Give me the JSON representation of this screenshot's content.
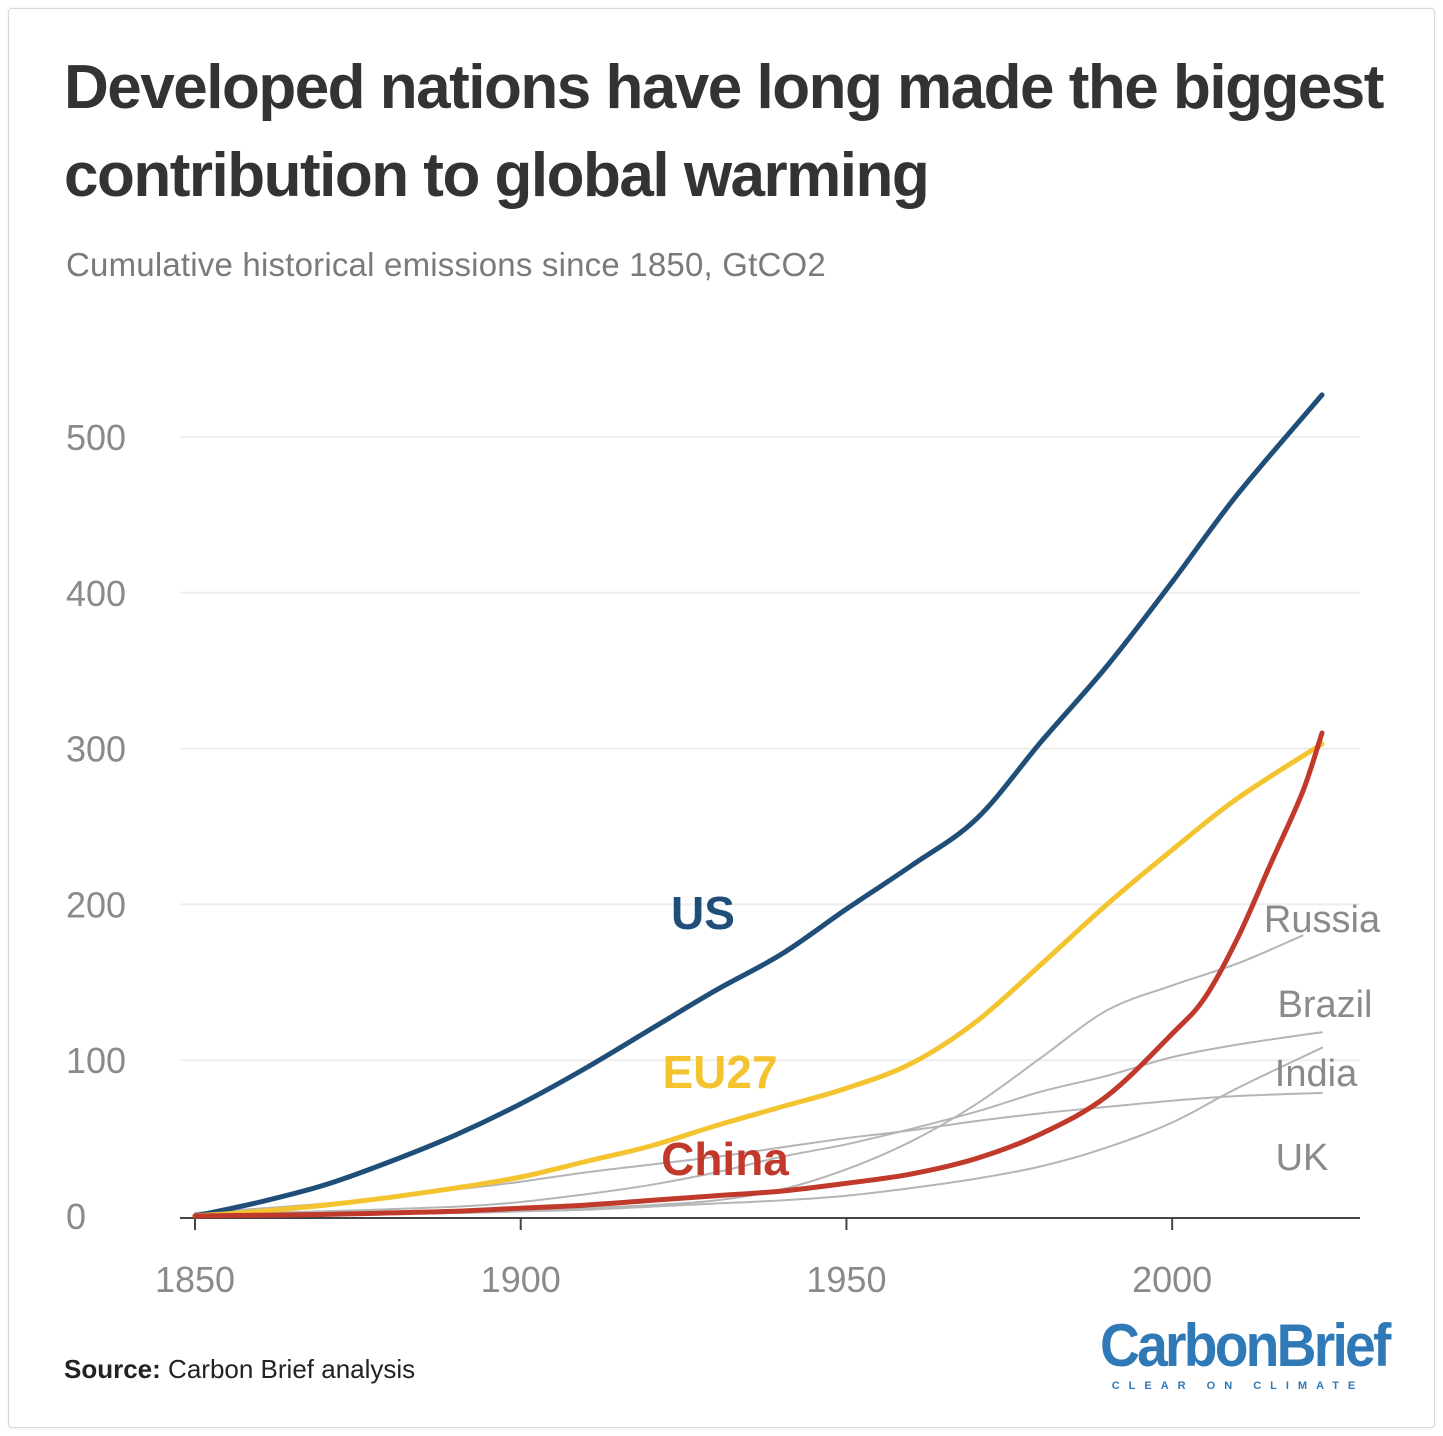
{
  "header": {
    "title": "Developed nations have long made the biggest contribution to global warming",
    "subtitle": "Cumulative historical emissions since 1850, GtCO2"
  },
  "footer": {
    "source_label": "Source:",
    "source_text": "Carbon Brief analysis",
    "logo_text": "CarbonBrief",
    "logo_tagline": "CLEAR ON CLIMATE"
  },
  "colors": {
    "us": "#1f4e79",
    "eu27": "#f4c430",
    "china": "#c0392b",
    "others": "#b5b5b5",
    "grid": "#eeeeee",
    "axis_text": "#8a8a8a"
  },
  "chart_data": {
    "type": "line",
    "title": "Developed nations have long made the biggest contribution to global warming",
    "subtitle": "Cumulative historical emissions since 1850, GtCO2",
    "xlabel": "",
    "ylabel": "",
    "xlim": [
      1850,
      2023
    ],
    "ylim": [
      0,
      530
    ],
    "x_ticks": [
      "1850",
      "1900",
      "1950",
      "2000"
    ],
    "y_ticks": [
      "0",
      "100",
      "200",
      "300",
      "400",
      "500"
    ],
    "grid": "horizontal",
    "series": [
      {
        "name": "US",
        "highlight": true,
        "color": "#1f4e79",
        "x": [
          1850,
          1860,
          1870,
          1880,
          1890,
          1900,
          1910,
          1920,
          1930,
          1940,
          1950,
          1960,
          1970,
          1980,
          1990,
          2000,
          2010,
          2023
        ],
        "y": [
          0,
          9,
          20,
          35,
          52,
          72,
          95,
          120,
          145,
          168,
          197,
          225,
          255,
          305,
          353,
          407,
          463,
          527
        ]
      },
      {
        "name": "EU27",
        "highlight": true,
        "color": "#f4c430",
        "x": [
          1850,
          1860,
          1870,
          1880,
          1890,
          1900,
          1910,
          1920,
          1930,
          1940,
          1950,
          1960,
          1970,
          1980,
          1990,
          2000,
          2010,
          2023
        ],
        "y": [
          0,
          3,
          7,
          12,
          18,
          25,
          35,
          45,
          58,
          70,
          82,
          98,
          125,
          162,
          200,
          235,
          268,
          303
        ]
      },
      {
        "name": "China",
        "highlight": true,
        "color": "#c0392b",
        "x": [
          1850,
          1860,
          1870,
          1880,
          1890,
          1900,
          1910,
          1920,
          1930,
          1940,
          1950,
          1960,
          1970,
          1980,
          1990,
          2000,
          2005,
          2010,
          2015,
          2020,
          2023
        ],
        "y": [
          0,
          0.5,
          1,
          2,
          3,
          5,
          7,
          10,
          13,
          16,
          21,
          27,
          37,
          53,
          77,
          117,
          140,
          178,
          225,
          272,
          310
        ]
      },
      {
        "name": "Russia",
        "highlight": false,
        "color": "#b5b5b5",
        "x": [
          1850,
          1870,
          1890,
          1900,
          1910,
          1920,
          1930,
          1940,
          1950,
          1960,
          1970,
          1980,
          1990,
          2000,
          2010,
          2020
        ],
        "y": [
          0,
          1,
          2,
          3,
          5,
          7,
          10,
          17,
          30,
          48,
          72,
          102,
          132,
          148,
          162,
          180
        ]
      },
      {
        "name": "Brazil",
        "highlight": false,
        "color": "#b5b5b5",
        "x": [
          1850,
          1870,
          1890,
          1900,
          1910,
          1920,
          1930,
          1940,
          1950,
          1960,
          1970,
          1980,
          1990,
          2000,
          2010,
          2023
        ],
        "y": [
          1,
          3,
          6,
          9,
          14,
          20,
          28,
          38,
          46,
          56,
          67,
          80,
          90,
          102,
          110,
          118
        ]
      },
      {
        "name": "India",
        "highlight": false,
        "color": "#b5b5b5",
        "x": [
          1850,
          1870,
          1890,
          1900,
          1910,
          1920,
          1930,
          1940,
          1950,
          1960,
          1970,
          1980,
          1990,
          2000,
          2010,
          2023
        ],
        "y": [
          0,
          1,
          2,
          3,
          4,
          6,
          8,
          10,
          13,
          18,
          24,
          32,
          44,
          60,
          82,
          108
        ]
      },
      {
        "name": "UK",
        "highlight": false,
        "color": "#b5b5b5",
        "x": [
          1850,
          1870,
          1890,
          1900,
          1910,
          1920,
          1930,
          1940,
          1950,
          1960,
          1970,
          1980,
          1990,
          2000,
          2010,
          2023
        ],
        "y": [
          2,
          8,
          17,
          22,
          28,
          33,
          38,
          44,
          50,
          55,
          61,
          66,
          70,
          74,
          77,
          79
        ]
      }
    ],
    "labels": [
      {
        "text": "US",
        "series": "US"
      },
      {
        "text": "EU27",
        "series": "EU27"
      },
      {
        "text": "China",
        "series": "China"
      },
      {
        "text": "Russia",
        "series": "Russia"
      },
      {
        "text": "Brazil",
        "series": "Brazil"
      },
      {
        "text": "India",
        "series": "India"
      },
      {
        "text": "UK",
        "series": "UK"
      }
    ]
  }
}
